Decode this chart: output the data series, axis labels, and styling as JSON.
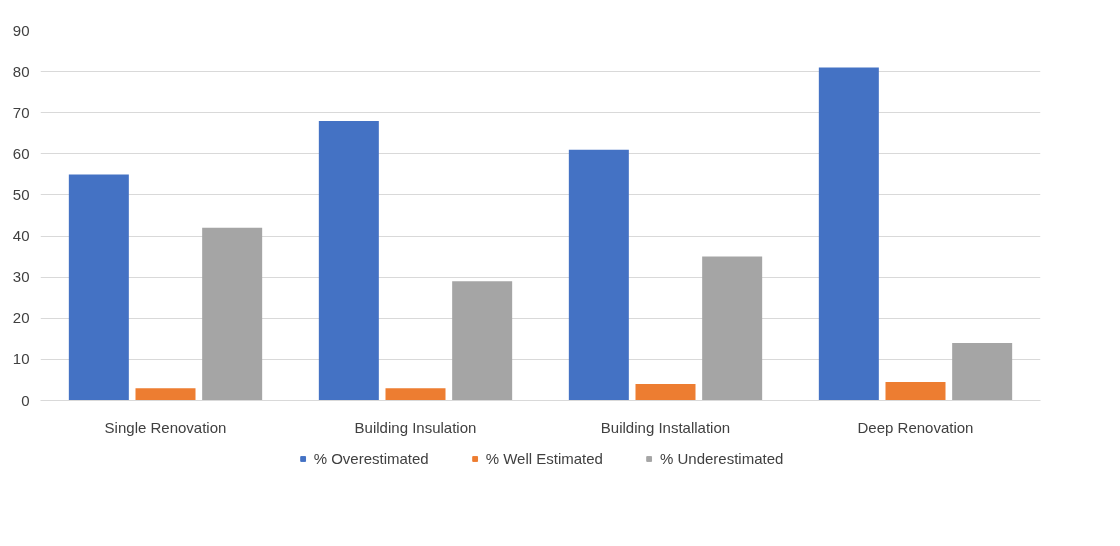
{
  "chart_data": {
    "type": "bar",
    "categories": [
      "Single Renovation",
      "Building Insulation",
      "Building Installation",
      "Deep Renovation"
    ],
    "series": [
      {
        "name": "% Overestimated",
        "color": "#4472c4",
        "values": [
          55,
          68,
          61,
          81
        ]
      },
      {
        "name": "% Well Estimated",
        "color": "#ed7d31",
        "values": [
          3,
          3,
          4,
          4.5
        ]
      },
      {
        "name": "% Underestimated",
        "color": "#a5a5a5",
        "values": [
          42,
          29,
          35,
          14
        ]
      }
    ],
    "ylim": [
      0,
      90
    ],
    "yticks": [
      0,
      10,
      20,
      30,
      40,
      50,
      60,
      70,
      80,
      90
    ],
    "grid": "y",
    "legend": "bottom"
  }
}
